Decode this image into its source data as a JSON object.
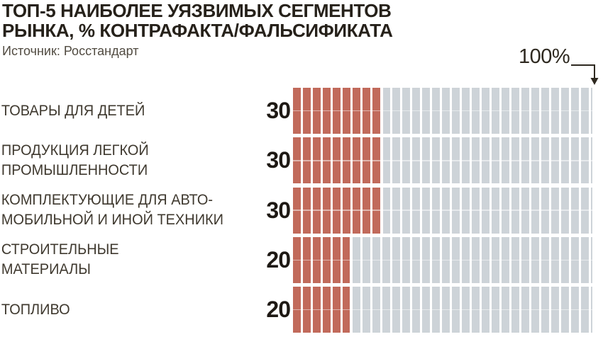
{
  "header": {
    "title_line1": "ТОП-5 НАИБОЛЕЕ УЯЗВИМЫХ СЕГМЕНТОВ",
    "title_line2": "РЫНКА, % КОНТРАФАКТА/ФАЛЬСИФИКАТА",
    "source": "Источник: Росстандарт"
  },
  "axis": {
    "max_label": "100%"
  },
  "chart_data": {
    "type": "bar",
    "orientation": "horizontal",
    "title": "ТОП-5 НАИБОЛЕЕ УЯЗВИМЫХ СЕГМЕНТОВ РЫНКА, % КОНТРАФАКТА/ФАЛЬСИФИКАТА",
    "source": "Источник: Росстандарт",
    "unit": "%",
    "xlim": [
      0,
      100
    ],
    "grid": false,
    "legend": false,
    "segments_per_bar": 30,
    "categories": [
      "ТОВАРЫ ДЛЯ ДЕТЕЙ",
      "ПРОДУКЦИЯ ЛЕГКОЙ ПРОМЫШЛЕННОСТИ",
      "КОМПЛЕКТУЮЩИЕ ДЛЯ АВТОМОБИЛЬНОЙ И ИНОЙ ТЕХНИКИ",
      "СТРОИТЕЛЬНЫЕ МАТЕРИАЛЫ",
      "ТОПЛИВО"
    ],
    "values": [
      30,
      30,
      30,
      20,
      20
    ],
    "rows": [
      {
        "label_lines": [
          "ТОВАРЫ ДЛЯ ДЕТЕЙ"
        ],
        "value": 30
      },
      {
        "label_lines": [
          "ПРОДУКЦИЯ ЛЕГКОЙ",
          "ПРОМЫШЛЕННОСТИ"
        ],
        "value": 30
      },
      {
        "label_lines": [
          "КОМПЛЕКТУЮЩИЕ ДЛЯ АВТО-",
          "МОБИЛЬНОЙ И ИНОЙ ТЕХНИКИ"
        ],
        "value": 30
      },
      {
        "label_lines": [
          "СТРОИТЕЛЬНЫЕ",
          "МАТЕРИАЛЫ"
        ],
        "value": 20
      },
      {
        "label_lines": [
          "ТОПЛИВО"
        ],
        "value": 20
      }
    ],
    "annotations": [
      "100%"
    ]
  },
  "colors": {
    "background": "#ffffff",
    "bar_fill": "#c16a5b",
    "bar_remainder": "#cdd3d8",
    "title_text": "#26211a",
    "label_text": "#3f392f",
    "value_text": "#1e1914",
    "source_text": "#514b41",
    "annotation": "#2e2920"
  }
}
